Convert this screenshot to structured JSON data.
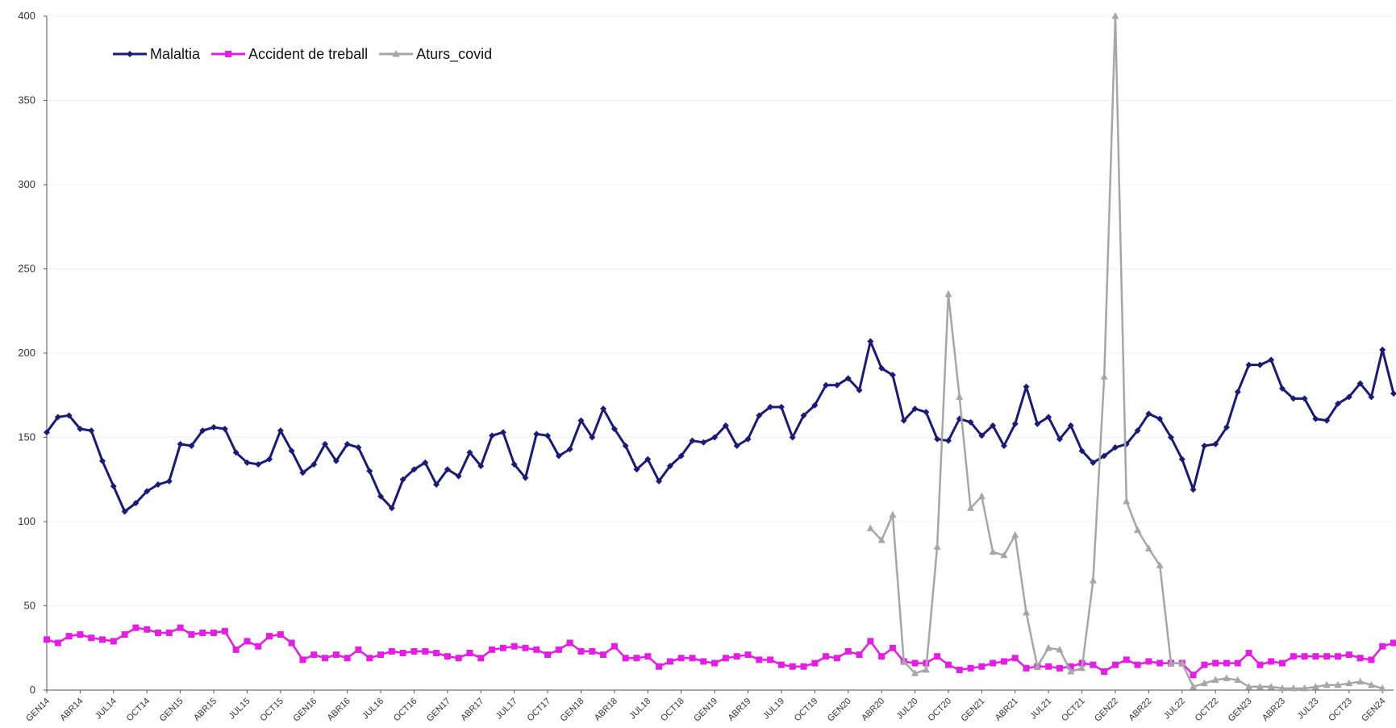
{
  "chart_data": {
    "type": "line",
    "title": "",
    "xlabel": "",
    "ylabel": "",
    "ylim": [
      0,
      400
    ],
    "yticks": [
      0,
      50,
      100,
      150,
      200,
      250,
      300,
      350,
      400
    ],
    "grid": true,
    "legend_position": "top-left",
    "x_tick_labels": [
      "GEN14",
      "ABR14",
      "JUL14",
      "OCT14",
      "GEN15",
      "ABR15",
      "JUL15",
      "OCT15",
      "GEN16",
      "ABR16",
      "JUL16",
      "OCT16",
      "GEN17",
      "ABR17",
      "JUL17",
      "OCT17",
      "GEN18",
      "ABR18",
      "JUL18",
      "OCT18",
      "GEN19",
      "ABR19",
      "JUL19",
      "OCT19",
      "GEN20",
      "ABR20",
      "JUL20",
      "OCT20",
      "GEN21",
      "ABR21",
      "JUL21",
      "OCT21",
      "GEN22",
      "ABR22",
      "JUL22",
      "OCT22",
      "GEN23",
      "ABR23",
      "JUL23",
      "OCT23",
      "GEN24"
    ],
    "series": [
      {
        "name": "Malaltia",
        "color": "#1a1a7a",
        "marker": "diamond",
        "values": [
          153,
          162,
          163,
          155,
          154,
          136,
          121,
          106,
          111,
          118,
          122,
          124,
          146,
          145,
          154,
          156,
          155,
          141,
          135,
          134,
          137,
          154,
          142,
          129,
          134,
          146,
          136,
          146,
          144,
          130,
          115,
          108,
          125,
          131,
          135,
          122,
          131,
          127,
          141,
          133,
          151,
          153,
          134,
          126,
          152,
          151,
          139,
          143,
          160,
          150,
          167,
          155,
          145,
          131,
          137,
          124,
          133,
          139,
          148,
          147,
          150,
          157,
          145,
          149,
          163,
          168,
          168,
          150,
          163,
          169,
          181,
          181,
          185,
          178,
          207,
          191,
          187,
          160,
          167,
          165,
          149,
          148,
          161,
          159,
          151,
          157,
          145,
          158,
          180,
          158,
          162,
          149,
          157,
          142,
          135,
          139,
          144,
          146,
          154,
          164,
          161,
          150,
          137,
          119,
          145,
          146,
          156,
          177,
          193,
          193,
          196,
          179,
          173,
          173,
          161,
          160,
          170,
          174,
          182,
          174,
          202,
          176
        ]
      },
      {
        "name": "Accident de treball",
        "color": "#e61be6",
        "marker": "square",
        "values": [
          30,
          28,
          32,
          33,
          31,
          30,
          29,
          33,
          37,
          36,
          34,
          34,
          37,
          33,
          34,
          34,
          35,
          24,
          29,
          26,
          32,
          33,
          28,
          18,
          21,
          19,
          21,
          19,
          24,
          19,
          21,
          23,
          22,
          23,
          23,
          22,
          20,
          19,
          22,
          19,
          24,
          25,
          26,
          25,
          24,
          21,
          24,
          28,
          23,
          23,
          21,
          26,
          19,
          19,
          20,
          14,
          17,
          19,
          19,
          17,
          16,
          19,
          20,
          21,
          18,
          18,
          15,
          14,
          14,
          16,
          20,
          19,
          23,
          21,
          29,
          20,
          25,
          17,
          16,
          16,
          20,
          15,
          12,
          13,
          14,
          16,
          17,
          19,
          13,
          14,
          14,
          13,
          14,
          16,
          15,
          11,
          15,
          18,
          15,
          17,
          16,
          16,
          16,
          9,
          15,
          16,
          16,
          16,
          22,
          15,
          17,
          16,
          20,
          20,
          20,
          20,
          20,
          21,
          19,
          18,
          26,
          28
        ]
      },
      {
        "name": "Aturs_covid",
        "color": "#a6a6a6",
        "marker": "triangle",
        "start_index": 74,
        "values": [
          96,
          89,
          104,
          17,
          10,
          12,
          85,
          235,
          174,
          108,
          115,
          82,
          80,
          92,
          46,
          14,
          25,
          24,
          11,
          13,
          65,
          186,
          400,
          112,
          95,
          84,
          74,
          16,
          16,
          2,
          4,
          6,
          7,
          6,
          2,
          2,
          2,
          1,
          1,
          1,
          2,
          3,
          3,
          4,
          5,
          3,
          1
        ]
      }
    ]
  }
}
